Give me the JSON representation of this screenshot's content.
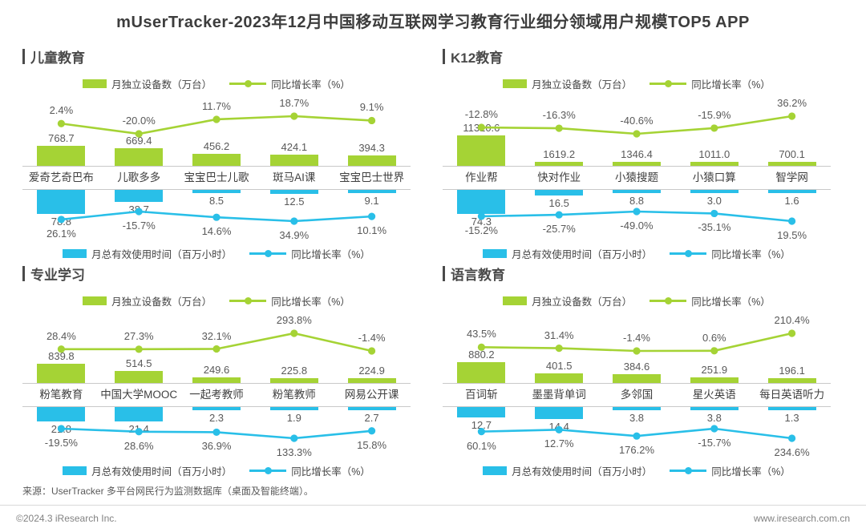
{
  "page": {
    "title": "mUserTracker-2023年12月中国移动互联网学习教育行业细分领域用户规模TOP5 APP",
    "source_note": "来源：UserTracker 多平台网民行为监测数据库（桌面及智能终端）。",
    "copyright": "©2024.3 iResearch Inc.",
    "website": "www.iresearch.com.cn"
  },
  "colors": {
    "green": "#A5D335",
    "blue": "#29BFE8",
    "title_text": "#3D3D3D",
    "label_text": "#595959",
    "axis_line": "#C9C9C9"
  },
  "legend": {
    "devices_label": "月独立设备数（万台）",
    "growth_label": "同比增长率（%）",
    "usage_label": "月总有效使用时间（百万小时）"
  },
  "chart_data": [
    {
      "type": "bar-line-combo",
      "title": "儿童教育",
      "categories": [
        "爱奇艺奇巴布",
        "儿歌多多",
        "宝宝巴士儿歌",
        "斑马AI课",
        "宝宝巴士世界"
      ],
      "series": [
        {
          "name": "月独立设备数（万台）",
          "values": [
            768.7,
            669.4,
            456.2,
            424.1,
            394.3
          ]
        },
        {
          "name": "月独立设备数同比增长率（%）",
          "values": [
            2.4,
            -20.0,
            11.7,
            18.7,
            9.1
          ]
        },
        {
          "name": "月总有效使用时间（百万小时）",
          "values": [
            78.8,
            38.7,
            8.5,
            12.5,
            9.1
          ]
        },
        {
          "name": "月总有效使用时间同比增长率（%）",
          "values": [
            26.1,
            -15.7,
            14.6,
            34.9,
            10.1
          ]
        }
      ]
    },
    {
      "type": "bar-line-combo",
      "title": "K12教育",
      "categories": [
        "作业帮",
        "快对作业",
        "小猿搜题",
        "小猿口算",
        "智学网"
      ],
      "series": [
        {
          "name": "月独立设备数（万台）",
          "values": [
            11310.6,
            1619.2,
            1346.4,
            1011.0,
            700.1
          ]
        },
        {
          "name": "月独立设备数同比增长率（%）",
          "values": [
            -12.8,
            -16.3,
            -40.6,
            -15.9,
            36.2
          ]
        },
        {
          "name": "月总有效使用时间（百万小时）",
          "values": [
            74.3,
            16.5,
            8.8,
            3.0,
            1.6
          ]
        },
        {
          "name": "月总有效使用时间同比增长率（%）",
          "values": [
            -15.2,
            -25.7,
            -49.0,
            -35.1,
            19.5
          ]
        }
      ]
    },
    {
      "type": "bar-line-combo",
      "title": "专业学习",
      "categories": [
        "粉笔教育",
        "中国大学MOOC",
        "一起考教师",
        "粉笔教师",
        "网易公开课"
      ],
      "series": [
        {
          "name": "月独立设备数（万台）",
          "values": [
            839.8,
            514.5,
            249.6,
            225.8,
            224.9
          ]
        },
        {
          "name": "月独立设备数同比增长率（%）",
          "values": [
            28.4,
            27.3,
            32.1,
            293.8,
            -1.4
          ]
        },
        {
          "name": "月总有效使用时间（百万小时）",
          "values": [
            21.8,
            21.4,
            2.3,
            1.9,
            2.7
          ]
        },
        {
          "name": "月总有效使用时间同比增长率（%）",
          "values": [
            -19.5,
            28.6,
            36.9,
            133.3,
            15.8
          ]
        }
      ]
    },
    {
      "type": "bar-line-combo",
      "title": "语言教育",
      "categories": [
        "百词斩",
        "墨墨背单词",
        "多邻国",
        "星火英语",
        "每日英语听力"
      ],
      "series": [
        {
          "name": "月独立设备数（万台）",
          "values": [
            880.2,
            401.5,
            384.6,
            251.9,
            196.1
          ]
        },
        {
          "name": "月独立设备数同比增长率（%）",
          "values": [
            43.5,
            31.4,
            -1.4,
            0.6,
            210.4
          ]
        },
        {
          "name": "月总有效使用时间（百万小时）",
          "values": [
            12.7,
            14.4,
            3.8,
            3.8,
            1.3
          ]
        },
        {
          "name": "月总有效使用时间同比增长率（%）",
          "values": [
            60.1,
            12.7,
            176.2,
            -15.7,
            234.6
          ]
        }
      ]
    }
  ]
}
